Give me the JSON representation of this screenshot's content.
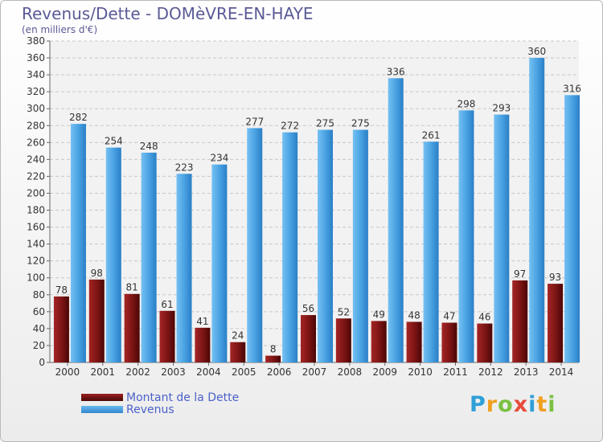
{
  "title": "Revenus/Dette - DOMèVRE-EN-HAYE",
  "subtitle": "(en milliers d'€)",
  "logo": {
    "text": "Proxiti",
    "letters": [
      {
        "ch": "P",
        "color": "#2f9fd7"
      },
      {
        "ch": "r",
        "color": "#f0a020"
      },
      {
        "ch": "o",
        "color": "#7cc142"
      },
      {
        "ch": "x",
        "color": "#e84b3c"
      },
      {
        "ch": "i",
        "color": "#2f9fd7"
      },
      {
        "ch": "t",
        "color": "#f0a020"
      },
      {
        "ch": "i",
        "color": "#7cc142"
      }
    ]
  },
  "colors": {
    "dette": "#7b1414",
    "revenus": "#4aa3e3",
    "grid": "#c8c8c8",
    "axis_text": "#333333",
    "title": "#5a5a96"
  },
  "chart_data": {
    "type": "bar",
    "title": "Revenus/Dette - DOMèVRE-EN-HAYE",
    "subtitle": "(en milliers d'€)",
    "categories": [
      "2000",
      "2001",
      "2002",
      "2003",
      "2004",
      "2005",
      "2006",
      "2007",
      "2008",
      "2009",
      "2010",
      "2011",
      "2012",
      "2013",
      "2014"
    ],
    "series": [
      {
        "name": "Montant de la Dette",
        "values": [
          78,
          98,
          81,
          61,
          41,
          24,
          8,
          56,
          52,
          49,
          48,
          47,
          46,
          97,
          93
        ]
      },
      {
        "name": "Revenus",
        "values": [
          282,
          254,
          248,
          223,
          234,
          277,
          272,
          275,
          275,
          336,
          261,
          298,
          293,
          360,
          316
        ]
      }
    ],
    "ylim": [
      0,
      380
    ],
    "ytick_step": 20,
    "grid": true,
    "legend_position": "bottom-left"
  }
}
